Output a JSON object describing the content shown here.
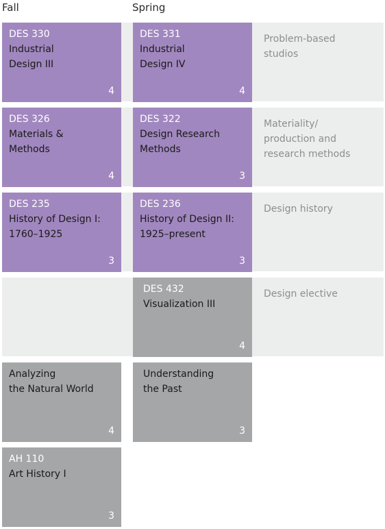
{
  "headers": {
    "fall": "Fall",
    "spring": "Spring"
  },
  "rows": [
    {
      "label": "Problem-based\nstudios",
      "fall": {
        "code": "DES 330",
        "title": "Industrial\nDesign III",
        "credits": "4"
      },
      "spring": {
        "code": "DES 331",
        "title": "Industrial\nDesign IV",
        "credits": "4"
      }
    },
    {
      "label": "Materiality/\nproduction and\nresearch methods",
      "fall": {
        "code": "DES 326",
        "title": "Materials &\nMethods",
        "credits": "4"
      },
      "spring": {
        "code": "DES 322",
        "title": "Design Research\nMethods",
        "credits": "3"
      }
    },
    {
      "label": "Design history",
      "fall": {
        "code": "DES 235",
        "title": "History of Design I:\n1760–1925",
        "credits": "3"
      },
      "spring": {
        "code": "DES 236",
        "title": "History of Design II:\n1925–present",
        "credits": "3"
      }
    },
    {
      "label": "Design elective",
      "spring": {
        "code": "DES 432",
        "title": "Visualization III",
        "credits": "4"
      }
    }
  ],
  "electives": [
    {
      "title": "Analyzing\nthe Natural World",
      "credits": "4"
    },
    {
      "title": "Understanding\nthe Past",
      "credits": "3"
    },
    {
      "code": "AH 110",
      "title": "Art History I",
      "credits": "3"
    }
  ],
  "colors": {
    "required": "#a187bf",
    "elective": "#a5a6a8",
    "band": "#eceeed",
    "label": "#8b8d8f"
  }
}
